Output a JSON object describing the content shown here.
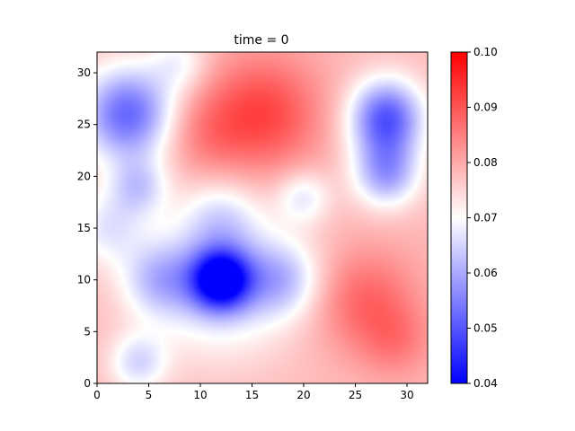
{
  "chart_data": {
    "type": "heatmap",
    "title": "time = 0",
    "xlabel": "",
    "ylabel": "",
    "xlim": [
      0,
      32
    ],
    "ylim": [
      0,
      32
    ],
    "xticks": [
      0,
      5,
      10,
      15,
      20,
      25,
      30
    ],
    "yticks": [
      0,
      5,
      10,
      15,
      20,
      25,
      30
    ],
    "colorbar": {
      "vmin": 0.04,
      "vmax": 0.1,
      "ticks": [
        "0.04",
        "0.05",
        "0.06",
        "0.07",
        "0.08",
        "0.09",
        "0.10"
      ],
      "colormap": "bwr",
      "colors": {
        "low": "#0000ff",
        "mid": "#ffffff",
        "high": "#ff0000"
      }
    },
    "base_value": 0.078,
    "features": [
      {
        "x": 12,
        "y": 10,
        "amplitude": -0.036,
        "sigma": 2.0
      },
      {
        "x": 12,
        "y": 10,
        "amplitude": -0.014,
        "sigma": 5.0
      },
      {
        "x": 12,
        "y": 16,
        "amplitude": -0.008,
        "sigma": 2.5
      },
      {
        "x": 6,
        "y": 10,
        "amplitude": -0.012,
        "sigma": 2.5
      },
      {
        "x": 18,
        "y": 10,
        "amplitude": -0.012,
        "sigma": 2.5
      },
      {
        "x": 4,
        "y": 2,
        "amplitude": -0.012,
        "sigma": 2.0
      },
      {
        "x": 3,
        "y": 26,
        "amplitude": -0.026,
        "sigma": 3.2
      },
      {
        "x": 4,
        "y": 19,
        "amplitude": -0.012,
        "sigma": 2.0
      },
      {
        "x": 20,
        "y": 18,
        "amplitude": -0.01,
        "sigma": 1.8
      },
      {
        "x": 28,
        "y": 26,
        "amplitude": -0.024,
        "sigma": 2.5
      },
      {
        "x": 28,
        "y": 20,
        "amplitude": -0.016,
        "sigma": 2.2
      },
      {
        "x": 28,
        "y": 23,
        "amplitude": -0.008,
        "sigma": 2.5
      },
      {
        "x": 16,
        "y": 26,
        "amplitude": 0.014,
        "sigma": 4.0
      },
      {
        "x": 10,
        "y": 24,
        "amplitude": 0.006,
        "sigma": 3.0
      },
      {
        "x": 26,
        "y": 8,
        "amplitude": 0.01,
        "sigma": 3.5
      },
      {
        "x": 29,
        "y": 4,
        "amplitude": 0.006,
        "sigma": 2.5
      },
      {
        "x": 1,
        "y": 15,
        "amplitude": -0.01,
        "sigma": 2.5
      },
      {
        "x": 8,
        "y": 31,
        "amplitude": -0.008,
        "sigma": 2.0
      }
    ]
  }
}
